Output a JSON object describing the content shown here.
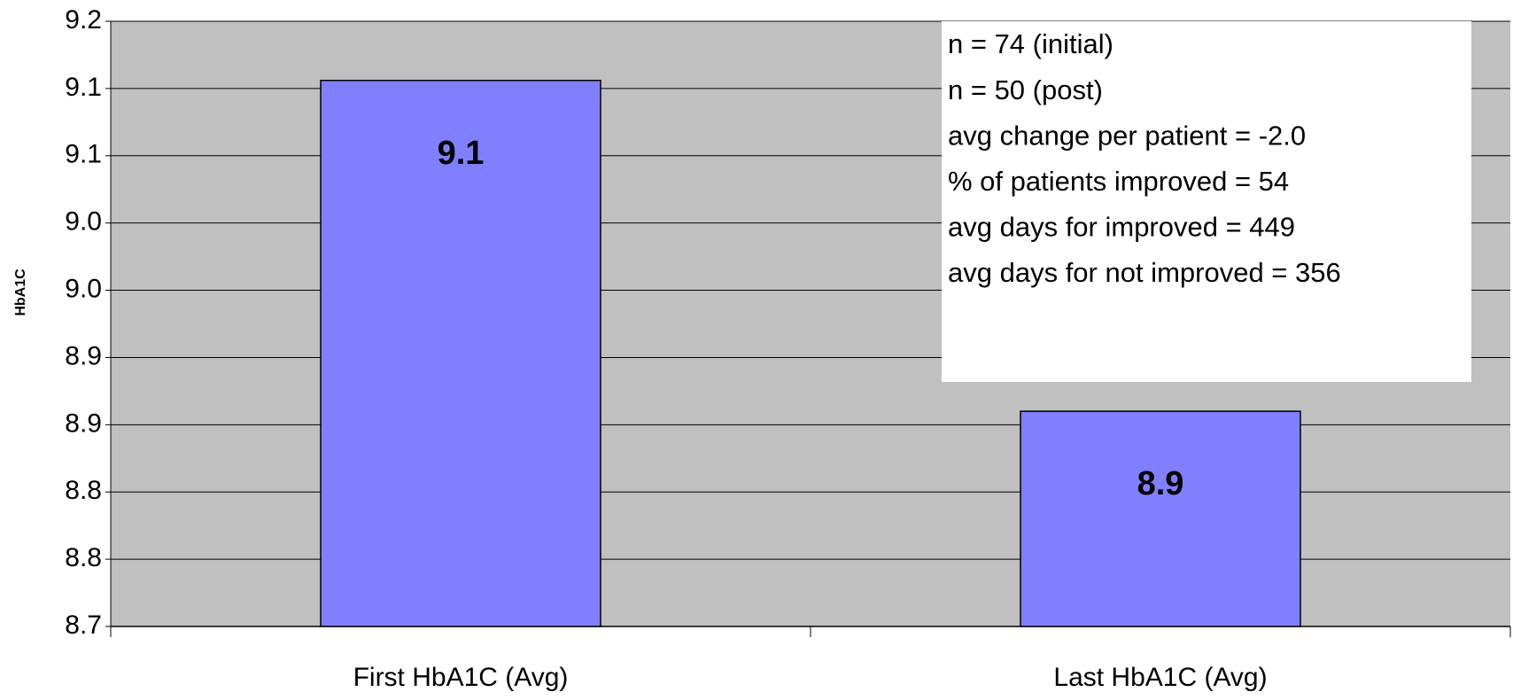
{
  "chart_data": {
    "type": "bar",
    "y_label": "HbA1C",
    "categories": [
      "First HbA1C (Avg)",
      "Last HbA1C (Avg)"
    ],
    "values": [
      9.106,
      8.86
    ],
    "value_labels": [
      "9.1",
      "8.9"
    ],
    "color": "#8080ff",
    "ylim": [
      8.7,
      9.15
    ],
    "yticks": [
      8.7,
      {
        "value": 8.75,
        "label": "8.8"
      },
      8.8,
      {
        "value": 8.85,
        "label": "8.9"
      },
      8.9,
      {
        "value": 8.95,
        "label": "9.0"
      },
      {
        "value": 9.0,
        "label": "9.0"
      },
      {
        "value": 9.05,
        "label": "9.1"
      },
      9.1,
      {
        "value": 9.15,
        "label": "9.2"
      }
    ],
    "grid": true,
    "annotations": [
      "n = 74 (initial)",
      "n = 50 (post)",
      "avg change per patient =  -2.0",
      "% of patients improved = 54",
      "avg days for improved = 449",
      "avg days for not improved = 356"
    ]
  }
}
